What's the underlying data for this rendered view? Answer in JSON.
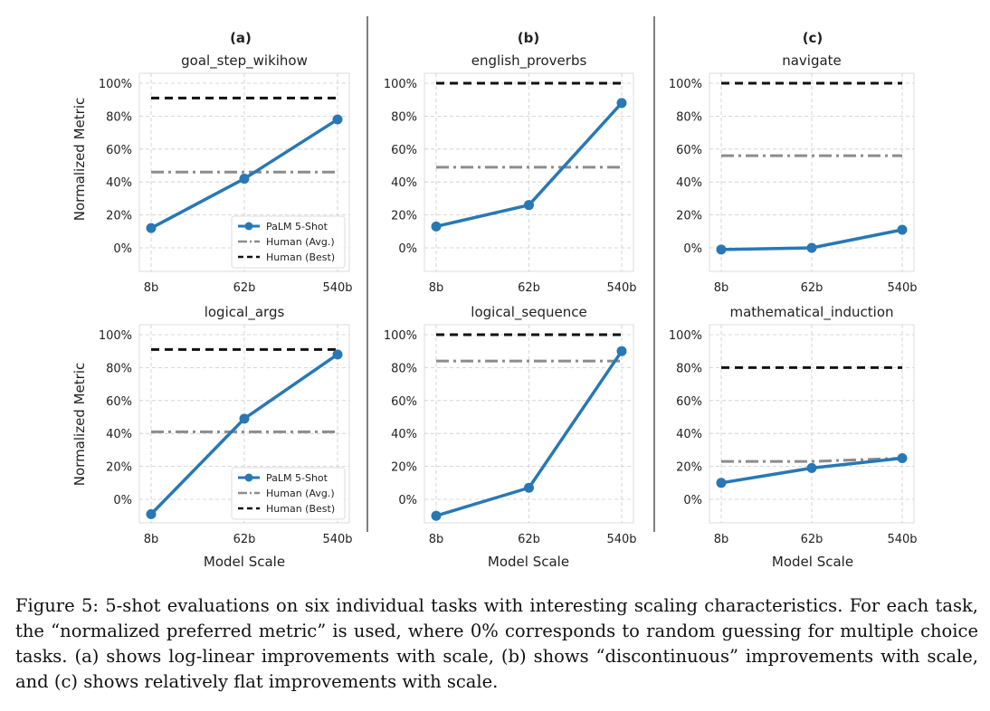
{
  "column_labels": [
    "(a)",
    "(b)",
    "(c)"
  ],
  "x_axis_label": "Model Scale",
  "y_axis_label": "Normalized Metric",
  "caption": "Figure 5: 5-shot evaluations on six individual tasks with interesting scaling characteristics. For each task, the “normalized preferred metric” is used, where 0% corresponds to random guessing for multiple choice tasks. (a) shows log-linear improvements with scale, (b) shows “discontinuous” improvements with scale, and (c) shows relatively flat improvements with scale.",
  "colors": {
    "palm": "#2878b5",
    "human_avg": "#8c8c8c",
    "human_best": "#111111",
    "grid": "#cccccc",
    "frame": "#dddddd",
    "divider": "#555555"
  },
  "chart_data": [
    {
      "type": "line",
      "title": "goal_step_wikihow",
      "column": "(a)",
      "categories": [
        "8b",
        "62b",
        "540b"
      ],
      "yticks": [
        "0%",
        "20%",
        "40%",
        "60%",
        "80%",
        "100%"
      ],
      "ylim": [
        -15,
        105
      ],
      "legend": "lower-right",
      "series": [
        {
          "name": "PaLM 5-Shot",
          "values": [
            12,
            42,
            78
          ]
        },
        {
          "name": "Human (Avg.)",
          "values": [
            46,
            46,
            46
          ]
        },
        {
          "name": "Human (Best)",
          "values": [
            91,
            91,
            91
          ]
        }
      ]
    },
    {
      "type": "line",
      "title": "english_proverbs",
      "column": "(b)",
      "categories": [
        "8b",
        "62b",
        "540b"
      ],
      "yticks": [
        "0%",
        "20%",
        "40%",
        "60%",
        "80%",
        "100%"
      ],
      "ylim": [
        -15,
        105
      ],
      "series": [
        {
          "name": "PaLM 5-Shot",
          "values": [
            13,
            26,
            88
          ]
        },
        {
          "name": "Human (Avg.)",
          "values": [
            49,
            49,
            49
          ]
        },
        {
          "name": "Human (Best)",
          "values": [
            100,
            100,
            100
          ]
        }
      ]
    },
    {
      "type": "line",
      "title": "navigate",
      "column": "(c)",
      "categories": [
        "8b",
        "62b",
        "540b"
      ],
      "yticks": [
        "0%",
        "20%",
        "40%",
        "60%",
        "80%",
        "100%"
      ],
      "ylim": [
        -15,
        105
      ],
      "series": [
        {
          "name": "PaLM 5-Shot",
          "values": [
            -1,
            0,
            11
          ]
        },
        {
          "name": "Human (Avg.)",
          "values": [
            56,
            56,
            56
          ]
        },
        {
          "name": "Human (Best)",
          "values": [
            100,
            100,
            100
          ]
        }
      ]
    },
    {
      "type": "line",
      "title": "logical_args",
      "column": "(a)",
      "categories": [
        "8b",
        "62b",
        "540b"
      ],
      "yticks": [
        "0%",
        "20%",
        "40%",
        "60%",
        "80%",
        "100%"
      ],
      "ylim": [
        -15,
        105
      ],
      "legend": "lower-right",
      "series": [
        {
          "name": "PaLM 5-Shot",
          "values": [
            -9,
            49,
            88
          ]
        },
        {
          "name": "Human (Avg.)",
          "values": [
            41,
            41,
            41
          ]
        },
        {
          "name": "Human (Best)",
          "values": [
            91,
            91,
            91
          ]
        }
      ]
    },
    {
      "type": "line",
      "title": "logical_sequence",
      "column": "(b)",
      "categories": [
        "8b",
        "62b",
        "540b"
      ],
      "yticks": [
        "0%",
        "20%",
        "40%",
        "60%",
        "80%",
        "100%"
      ],
      "ylim": [
        -15,
        105
      ],
      "series": [
        {
          "name": "PaLM 5-Shot",
          "values": [
            -10,
            7,
            90
          ]
        },
        {
          "name": "Human (Avg.)",
          "values": [
            84,
            84,
            84
          ]
        },
        {
          "name": "Human (Best)",
          "values": [
            100,
            100,
            100
          ]
        }
      ]
    },
    {
      "type": "line",
      "title": "mathematical_induction",
      "column": "(c)",
      "categories": [
        "8b",
        "62b",
        "540b"
      ],
      "yticks": [
        "0%",
        "20%",
        "40%",
        "60%",
        "80%",
        "100%"
      ],
      "ylim": [
        -15,
        105
      ],
      "series": [
        {
          "name": "PaLM 5-Shot",
          "values": [
            10,
            19,
            25
          ]
        },
        {
          "name": "Human (Avg.)",
          "values": [
            23,
            23,
            25
          ]
        },
        {
          "name": "Human (Best)",
          "values": [
            80,
            80,
            80
          ]
        }
      ]
    }
  ]
}
